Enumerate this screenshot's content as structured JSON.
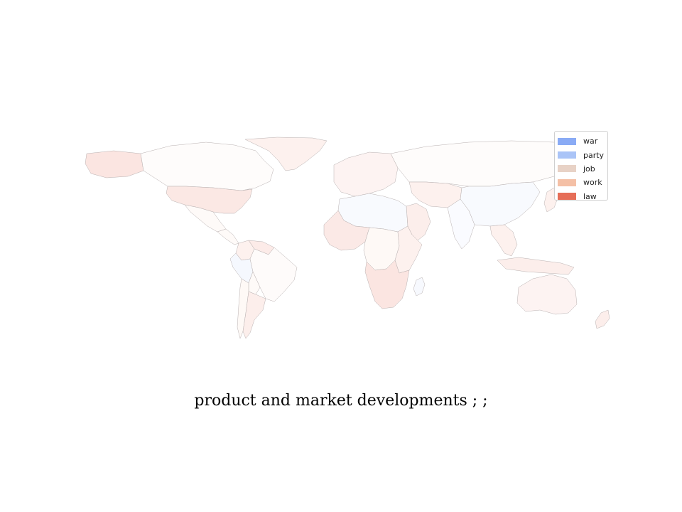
{
  "caption": "product and market developments ; ;",
  "legend": {
    "placement": "top-right",
    "entries": [
      {
        "label": "war",
        "color": "#8aabf5"
      },
      {
        "label": "party",
        "color": "#aac4f7"
      },
      {
        "label": "job",
        "color": "#e8d2c6"
      },
      {
        "label": "work",
        "color": "#f4c0a6"
      },
      {
        "label": "law",
        "color": "#e66e58"
      }
    ]
  },
  "regions": [
    {
      "name": "Alaska",
      "category": "law",
      "intensity": 0.18
    },
    {
      "name": "Canada",
      "category": "work",
      "intensity": 0.05
    },
    {
      "name": "Greenland",
      "category": "law",
      "intensity": 0.1
    },
    {
      "name": "United States",
      "category": "law",
      "intensity": 0.16
    },
    {
      "name": "Mexico",
      "category": "work",
      "intensity": 0.08
    },
    {
      "name": "Central America",
      "category": "work",
      "intensity": 0.08
    },
    {
      "name": "Colombia",
      "category": "law",
      "intensity": 0.1
    },
    {
      "name": "Venezuela",
      "category": "law",
      "intensity": 0.14
    },
    {
      "name": "Peru",
      "category": "party",
      "intensity": 0.12
    },
    {
      "name": "Brazil",
      "category": "work",
      "intensity": 0.06
    },
    {
      "name": "Bolivia",
      "category": "work",
      "intensity": 0.08
    },
    {
      "name": "Argentina",
      "category": "law",
      "intensity": 0.12
    },
    {
      "name": "Chile",
      "category": "work",
      "intensity": 0.1
    },
    {
      "name": "Europe",
      "category": "law",
      "intensity": 0.08
    },
    {
      "name": "Russia",
      "category": "work",
      "intensity": 0.05
    },
    {
      "name": "North Africa",
      "category": "party",
      "intensity": 0.08
    },
    {
      "name": "West Africa",
      "category": "law",
      "intensity": 0.15
    },
    {
      "name": "Central Africa",
      "category": "work",
      "intensity": 0.1
    },
    {
      "name": "East Africa",
      "category": "law",
      "intensity": 0.1
    },
    {
      "name": "Southern Africa",
      "category": "law",
      "intensity": 0.18
    },
    {
      "name": "Madagascar",
      "category": "party",
      "intensity": 0.1
    },
    {
      "name": "Arabia",
      "category": "law",
      "intensity": 0.12
    },
    {
      "name": "Central Asia",
      "category": "law",
      "intensity": 0.1
    },
    {
      "name": "India",
      "category": "party",
      "intensity": 0.06
    },
    {
      "name": "China",
      "category": "party",
      "intensity": 0.08
    },
    {
      "name": "Southeast Asia",
      "category": "law",
      "intensity": 0.1
    },
    {
      "name": "Japan",
      "category": "law",
      "intensity": 0.1
    },
    {
      "name": "Indonesia",
      "category": "law",
      "intensity": 0.12
    },
    {
      "name": "Australia",
      "category": "law",
      "intensity": 0.08
    },
    {
      "name": "New Zealand",
      "category": "law",
      "intensity": 0.12
    }
  ]
}
